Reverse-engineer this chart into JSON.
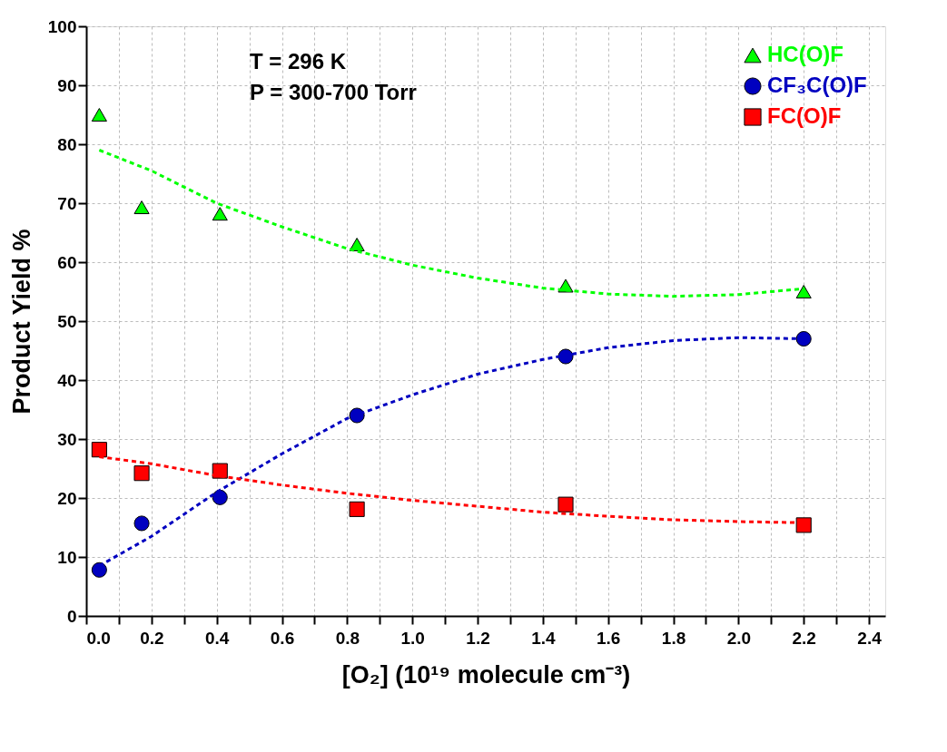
{
  "chart_data": {
    "type": "scatter",
    "xlabel": "[O₂] (10¹⁹ molecule cm⁻³)",
    "ylabel": "Product Yield %",
    "annotations": [
      "T = 296 K",
      "P = 300-700 Torr"
    ],
    "x": [
      0.04,
      0.17,
      0.41,
      0.83,
      1.47,
      2.2
    ],
    "series": [
      {
        "name": "HC(O)F",
        "color": "#00ff00",
        "marker": "triangle",
        "values": [
          85,
          69.3,
          68.2,
          63,
          56,
          55
        ]
      },
      {
        "name": "CF₃C(O)F",
        "color": "#0000c0",
        "marker": "circle",
        "values": [
          7.8,
          15.7,
          20.1,
          34,
          44,
          47
        ]
      },
      {
        "name": "FC(O)F",
        "color": "#ff0000",
        "marker": "square",
        "values": [
          28.2,
          24.2,
          24.6,
          18.1,
          18.9,
          15.4
        ]
      },
      {
        "type": "line",
        "color": "#00ff00",
        "line_style": "dashed",
        "marker": "none",
        "x": [
          0.04,
          0.2,
          0.4,
          0.6,
          0.8,
          1.0,
          1.2,
          1.4,
          1.6,
          1.8,
          2.0,
          2.2
        ],
        "values": [
          79,
          75.5,
          70,
          66,
          62.3,
          59.5,
          57.3,
          55.6,
          54.6,
          54.2,
          54.5,
          55.5
        ]
      },
      {
        "type": "line",
        "color": "#0000c0",
        "line_style": "dashed",
        "marker": "none",
        "x": [
          0.04,
          0.2,
          0.4,
          0.6,
          0.8,
          1.0,
          1.2,
          1.4,
          1.6,
          1.8,
          2.0,
          2.2
        ],
        "values": [
          8.5,
          13.5,
          21,
          27.5,
          33.5,
          37.5,
          41,
          43.5,
          45.5,
          46.7,
          47.2,
          47
        ]
      },
      {
        "type": "line",
        "color": "#ff0000",
        "line_style": "dashed",
        "marker": "none",
        "x": [
          0.04,
          0.2,
          0.4,
          0.6,
          0.8,
          1.0,
          1.2,
          1.4,
          1.6,
          1.8,
          2.0,
          2.2
        ],
        "values": [
          27,
          25.8,
          23.8,
          22.2,
          20.8,
          19.6,
          18.6,
          17.6,
          16.9,
          16.3,
          16.0,
          15.8
        ]
      }
    ],
    "xlim": [
      0,
      2.45
    ],
    "xticks": [
      {
        "value": 0,
        "label": "0.0"
      },
      {
        "value": 0.1,
        "label": null
      },
      {
        "value": 0.2,
        "label": "0.2"
      },
      {
        "value": 0.3,
        "label": null
      },
      {
        "value": 0.4,
        "label": "0.4"
      },
      {
        "value": 0.5,
        "label": null
      },
      {
        "value": 0.6,
        "label": "0.6"
      },
      {
        "value": 0.7,
        "label": null
      },
      {
        "value": 0.8,
        "label": "0.8"
      },
      {
        "value": 0.9,
        "label": null
      },
      {
        "value": 1.0,
        "label": "1.0"
      },
      {
        "value": 1.1,
        "label": null
      },
      {
        "value": 1.2,
        "label": "1.2"
      },
      {
        "value": 1.3,
        "label": null
      },
      {
        "value": 1.4,
        "label": "1.4"
      },
      {
        "value": 1.5,
        "label": null
      },
      {
        "value": 1.6,
        "label": "1.6"
      },
      {
        "value": 1.7,
        "label": null
      },
      {
        "value": 1.8,
        "label": "1.8"
      },
      {
        "value": 1.9,
        "label": null
      },
      {
        "value": 2.0,
        "label": "2.0"
      },
      {
        "value": 2.1,
        "label": null
      },
      {
        "value": 2.2,
        "label": "2.2"
      },
      {
        "value": 2.3,
        "label": null
      },
      {
        "value": 2.4,
        "label": "2.4"
      }
    ],
    "ylim": [
      0,
      100
    ],
    "yticks": [
      0,
      10,
      20,
      30,
      40,
      50,
      60,
      70,
      80,
      90,
      100
    ],
    "grid": true,
    "legend": "top right"
  }
}
